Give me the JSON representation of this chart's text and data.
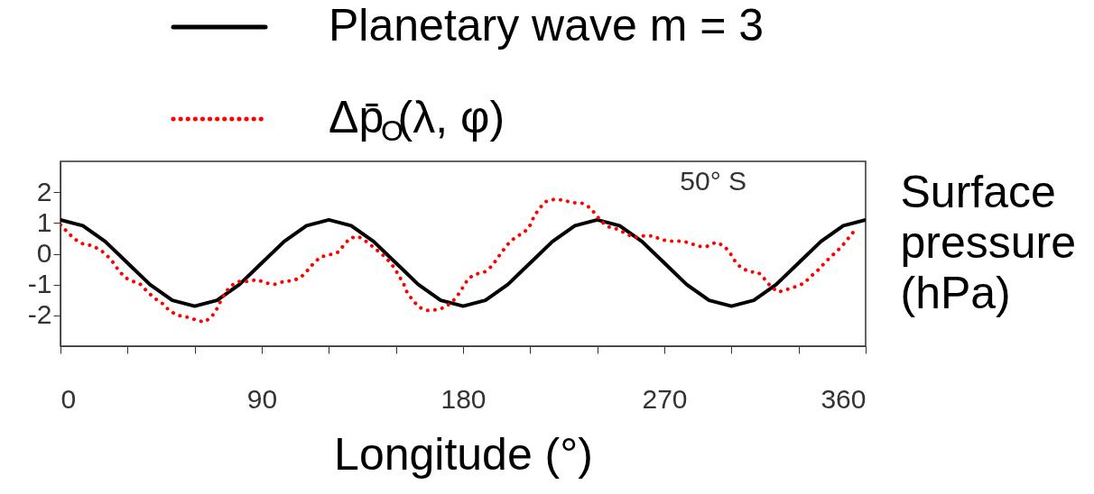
{
  "chart_data": {
    "type": "line",
    "xlabel": "Longitude (°)",
    "ylabel": "Surface pressure (hPa)",
    "legend": "top",
    "grid": false,
    "annotations": [
      "50° S"
    ],
    "xlim": [
      0,
      360
    ],
    "ylim": [
      -3,
      3
    ],
    "xticks": [
      0,
      {
        "value": 30,
        "label": null
      },
      {
        "value": 60,
        "label": null
      },
      90,
      {
        "value": 120,
        "label": null
      },
      {
        "value": 150,
        "label": null
      },
      180,
      {
        "value": 210,
        "label": null
      },
      {
        "value": 240,
        "label": null
      },
      270,
      {
        "value": 300,
        "label": null
      },
      {
        "value": 330,
        "label": null
      },
      360
    ],
    "yticks": [
      -2,
      -1,
      0,
      1,
      2
    ],
    "series": [
      {
        "name": "Planetary wave m = 3",
        "color": "#000000",
        "line_style": "solid",
        "x": [
          0,
          10,
          20,
          30,
          40,
          50,
          60,
          70,
          80,
          90,
          100,
          110,
          120,
          130,
          140,
          150,
          160,
          170,
          180,
          190,
          200,
          210,
          220,
          230,
          240,
          250,
          260,
          270,
          280,
          290,
          300,
          310,
          320,
          330,
          340,
          350,
          360
        ],
        "values": [
          1.1,
          0.91,
          0.4,
          -0.3,
          -1.0,
          -1.51,
          -1.7,
          -1.51,
          -1.0,
          -0.3,
          0.4,
          0.91,
          1.1,
          0.91,
          0.4,
          -0.3,
          -1.0,
          -1.51,
          -1.7,
          -1.51,
          -1.0,
          -0.3,
          0.4,
          0.91,
          1.1,
          0.91,
          0.4,
          -0.3,
          -1.0,
          -1.51,
          -1.7,
          -1.51,
          -1.0,
          -0.3,
          0.4,
          0.91,
          1.1
        ]
      },
      {
        "name": "Δp̄$_{O}$(λ, φ)",
        "color": "#ff0000",
        "line_style": "dotted",
        "x": [
          0,
          3.2,
          6.2,
          10,
          13.7,
          17.6,
          20.7,
          23.4,
          25.8,
          28.8,
          32.2,
          35.7,
          39.1,
          42.2,
          45.5,
          48.6,
          52.3,
          56.3,
          60.7,
          64.3,
          67.4,
          69.7,
          71.7,
          73.7,
          76.4,
          79.8,
          83.6,
          87.8,
          92.1,
          95.9,
          99.9,
          104.2,
          107.7,
          110.7,
          113.4,
          116.4,
          120.5,
          124.1,
          126.8,
          129.5,
          133.2,
          136.9,
          140.3,
          143.6,
          146.3,
          149,
          151.2,
          153.4,
          155,
          157.4,
          160.4,
          164.1,
          168.2,
          171.8,
          175.1,
          177.8,
          180.2,
          182.5,
          185.9,
          189.9,
          193,
          195.6,
          198,
          200.6,
          203.3,
          207.4,
          210.1,
          211.7,
          214.1,
          216.8,
          220.8,
          224.9,
          228.9,
          233.2,
          236.7,
          239.3,
          241.9,
          245.3,
          249,
          252.8,
          256.4,
          260.9,
          264.9,
          268.9,
          272.9,
          276.9,
          281.2,
          285,
          289,
          293,
          296.7,
          299.4,
          301.6,
          304.3,
          308.1,
          312.1,
          315.2,
          317.5,
          320.9,
          324.9,
          329,
          332.6,
          335.7,
          338.7,
          341.4,
          344.4,
          347.7,
          350.5,
          353.1,
          355.8
        ],
        "values": [
          0.94,
          0.7,
          0.48,
          0.32,
          0.27,
          0.14,
          -0.05,
          -0.27,
          -0.52,
          -0.77,
          -0.89,
          -0.99,
          -1.25,
          -1.45,
          -1.61,
          -1.84,
          -2.0,
          -2.05,
          -2.15,
          -2.22,
          -2.06,
          -1.82,
          -1.52,
          -1.26,
          -1.03,
          -0.9,
          -0.9,
          -0.84,
          -0.95,
          -0.99,
          -0.9,
          -0.87,
          -0.75,
          -0.52,
          -0.29,
          -0.1,
          -0.03,
          0.05,
          0.29,
          0.51,
          0.56,
          0.39,
          0.19,
          0.0,
          -0.19,
          -0.43,
          -0.7,
          -0.97,
          -1.26,
          -1.5,
          -1.74,
          -1.84,
          -1.82,
          -1.74,
          -1.57,
          -1.33,
          -1.06,
          -0.79,
          -0.66,
          -0.58,
          -0.39,
          -0.12,
          0.12,
          0.36,
          0.53,
          0.7,
          0.94,
          1.21,
          1.47,
          1.69,
          1.77,
          1.74,
          1.66,
          1.64,
          1.5,
          1.28,
          1.04,
          0.87,
          0.8,
          0.66,
          0.53,
          0.58,
          0.58,
          0.45,
          0.41,
          0.41,
          0.36,
          0.24,
          0.24,
          0.37,
          0.26,
          0.02,
          -0.24,
          -0.46,
          -0.58,
          -0.61,
          -0.85,
          -1.06,
          -1.24,
          -1.16,
          -1.06,
          -0.95,
          -0.72,
          -0.53,
          -0.32,
          -0.1,
          0.12,
          0.34,
          0.58,
          0.82
        ]
      }
    ]
  }
}
